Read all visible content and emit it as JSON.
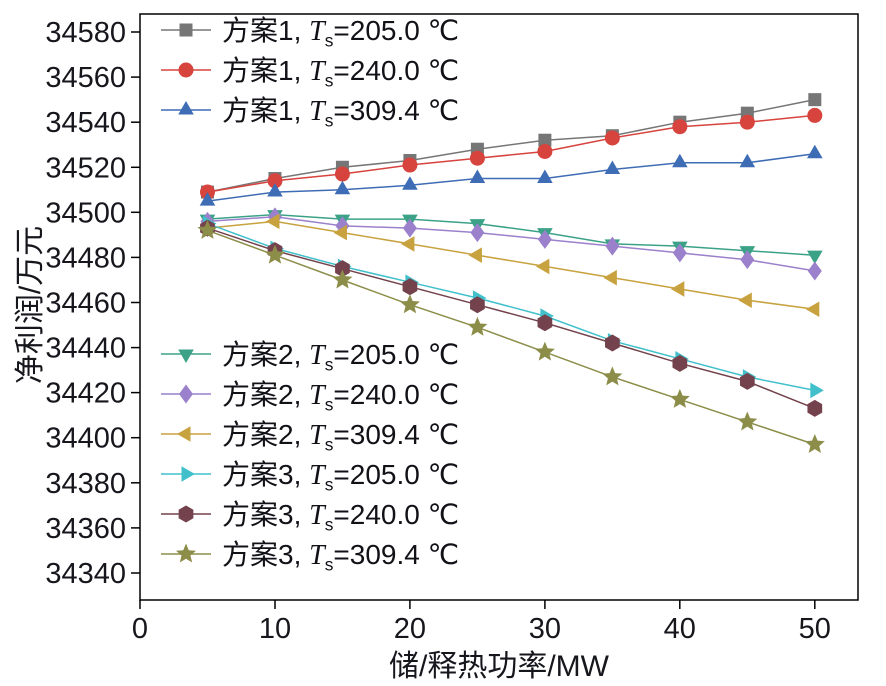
{
  "chart_data": {
    "type": "line",
    "title": "",
    "xlabel": "储/释热功率/MW",
    "ylabel": "净利润/万元",
    "grid": false,
    "x": [
      5,
      10,
      15,
      20,
      25,
      30,
      35,
      40,
      45,
      50
    ],
    "x_ticks": [
      0,
      10,
      20,
      30,
      40,
      50
    ],
    "y_ticks": [
      34340,
      34360,
      34380,
      34400,
      34420,
      34440,
      34460,
      34480,
      34500,
      34520,
      34540,
      34560,
      34580
    ],
    "xlim": [
      0,
      53.2
    ],
    "ylim": [
      34328,
      34588
    ],
    "axis_color": "#000000",
    "text_color": "#16161d",
    "legend": {
      "t_symbol": "T",
      "t_subscript": "s",
      "separator": ", ",
      "equals": "=",
      "position": [
        "upper-left",
        "lower-left"
      ],
      "blocks": [
        [
          0,
          1,
          2
        ],
        [
          3,
          4,
          5,
          6,
          7,
          8
        ]
      ]
    },
    "series": [
      {
        "scheme": "方案1",
        "temp": "205.0 ℃",
        "marker": "square",
        "color": "#767676",
        "values": [
          34509,
          34515,
          34520,
          34523,
          34528,
          34532,
          34534,
          34540,
          34544,
          34550
        ]
      },
      {
        "scheme": "方案1",
        "temp": "240.0 ℃",
        "marker": "circle",
        "color": "#d7433d",
        "values": [
          34509,
          34514,
          34517,
          34521,
          34524,
          34527,
          34533,
          34538,
          34540,
          34543
        ]
      },
      {
        "scheme": "方案1",
        "temp": "309.4 ℃",
        "marker": "triangle-up",
        "color": "#3e6cb5",
        "values": [
          34505,
          34509,
          34510,
          34512,
          34515,
          34515,
          34519,
          34522,
          34522,
          34526
        ]
      },
      {
        "scheme": "方案2",
        "temp": "205.0 ℃",
        "marker": "triangle-down",
        "color": "#3ba287",
        "values": [
          34497,
          34499,
          34497,
          34497,
          34495,
          34491,
          34486,
          34485,
          34483,
          34481
        ]
      },
      {
        "scheme": "方案2",
        "temp": "240.0 ℃",
        "marker": "diamond",
        "color": "#9b80cc",
        "values": [
          34496,
          34498,
          34494,
          34493,
          34491,
          34488,
          34485,
          34482,
          34479,
          34474
        ]
      },
      {
        "scheme": "方案2",
        "temp": "309.4 ℃",
        "marker": "triangle-left",
        "color": "#c7a23f",
        "values": [
          34493,
          34496,
          34491,
          34486,
          34481,
          34476,
          34471,
          34466,
          34461,
          34457
        ]
      },
      {
        "scheme": "方案3",
        "temp": "205.0 ℃",
        "marker": "triangle-right",
        "color": "#41c0cb",
        "values": [
          34495,
          34484,
          34476,
          34469,
          34462,
          34454,
          34443,
          34435,
          34427,
          34421
        ]
      },
      {
        "scheme": "方案3",
        "temp": "240.0 ℃",
        "marker": "hexagon",
        "color": "#73424c",
        "values": [
          34493,
          34483,
          34475,
          34467,
          34459,
          34451,
          34442,
          34433,
          34425,
          34413
        ]
      },
      {
        "scheme": "方案3",
        "temp": "309.4 ℃",
        "marker": "star",
        "color": "#8d8d4a",
        "values": [
          34492,
          34481,
          34470,
          34459,
          34449,
          34438,
          34427,
          34417,
          34407,
          34397
        ]
      }
    ]
  }
}
